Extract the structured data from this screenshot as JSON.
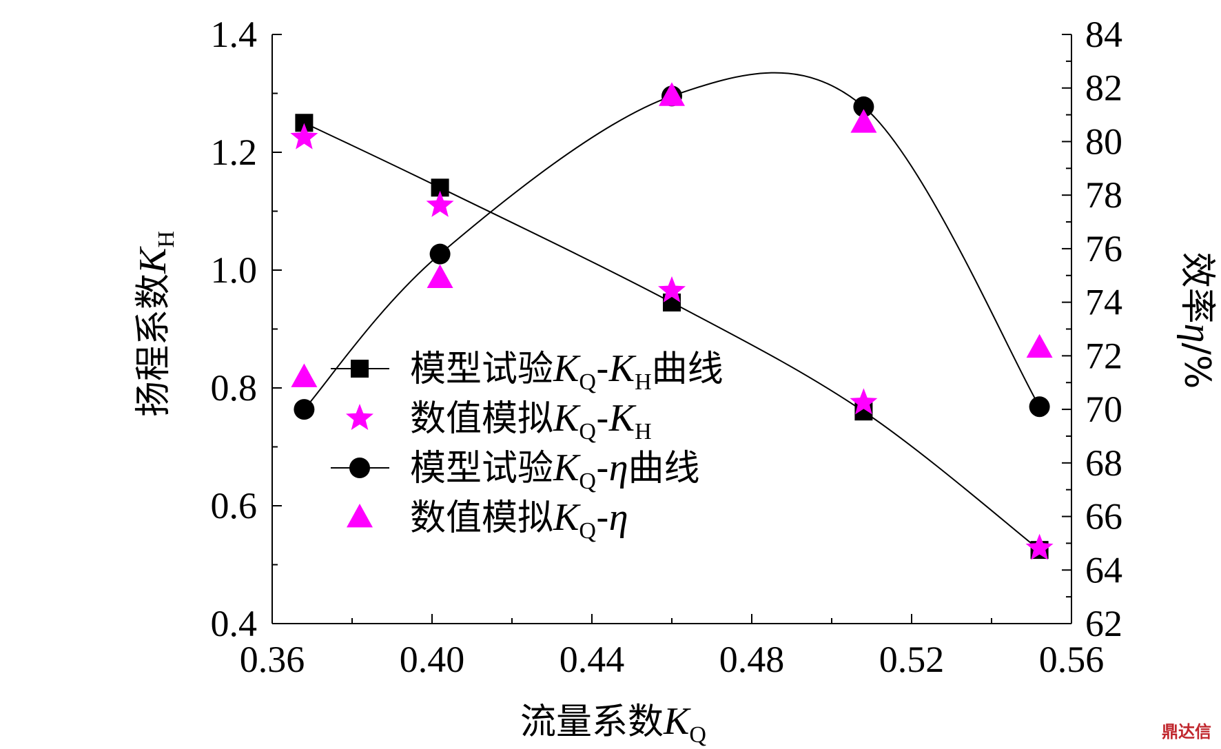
{
  "chart_data": {
    "type": "line",
    "x": [
      0.368,
      0.402,
      0.46,
      0.508,
      0.552
    ],
    "xlabel": "流量系数K_Q",
    "ylabel_left": "扬程系数K_H",
    "ylabel_right": "效率η/%",
    "xlim": [
      0.36,
      0.56
    ],
    "ylim_left": [
      0.4,
      1.4
    ],
    "ylim_right": [
      62,
      84
    ],
    "x_ticks": [
      "0.36",
      "0.40",
      "0.44",
      "0.48",
      "0.52",
      "0.56"
    ],
    "y_left_ticks": [
      "0.4",
      "0.6",
      "0.8",
      "1.0",
      "1.2",
      "1.4"
    ],
    "y_right_ticks": [
      "62",
      "64",
      "66",
      "68",
      "70",
      "72",
      "74",
      "76",
      "78",
      "80",
      "82",
      "84"
    ],
    "grid": false,
    "legend_position": "bottom-left",
    "series": [
      {
        "name": "模型试验K_Q-K_H曲线",
        "axis": "left",
        "marker": "square",
        "line": true,
        "color": "#000000",
        "values": [
          1.25,
          1.14,
          0.945,
          0.76,
          0.525
        ]
      },
      {
        "name": "数值模拟K_Q-K_H",
        "axis": "left",
        "marker": "star",
        "line": false,
        "color": "#ff00ff",
        "values": [
          1.225,
          1.11,
          0.965,
          0.775,
          0.528
        ]
      },
      {
        "name": "模型试验K_Q-η曲线",
        "axis": "right",
        "marker": "circle",
        "line": true,
        "color": "#000000",
        "values": [
          70.0,
          75.8,
          81.7,
          81.3,
          70.1
        ]
      },
      {
        "name": "数值模拟K_Q-η",
        "axis": "right",
        "marker": "triangle",
        "line": false,
        "color": "#ff00ff",
        "values": [
          71.2,
          74.9,
          81.7,
          80.7,
          72.3
        ]
      }
    ]
  },
  "labels": {
    "xlabel_main": "流量系数",
    "xlabel_var": "K",
    "xlabel_sub": "Q",
    "ylabel_left_main": "扬程系数",
    "ylabel_left_var": "K",
    "ylabel_left_sub": "H",
    "ylabel_right_main": "效率",
    "ylabel_right_var": "η",
    "ylabel_right_unit": "/%"
  },
  "legend": [
    {
      "prefix": "模型试验",
      "var1": "K",
      "sub1": "Q",
      "dash": "-",
      "var2": "K",
      "sub2": "H",
      "suffix": "曲线"
    },
    {
      "prefix": "数值模拟",
      "var1": "K",
      "sub1": "Q",
      "dash": "-",
      "var2": "K",
      "sub2": "H",
      "suffix": ""
    },
    {
      "prefix": "模型试验",
      "var1": "K",
      "sub1": "Q",
      "dash": "-",
      "var2": "η",
      "sub2": "",
      "suffix": "曲线"
    },
    {
      "prefix": "数值模拟",
      "var1": "K",
      "sub1": "Q",
      "dash": "-",
      "var2": "η",
      "sub2": "",
      "suffix": ""
    }
  ],
  "watermark": "鼎达信"
}
